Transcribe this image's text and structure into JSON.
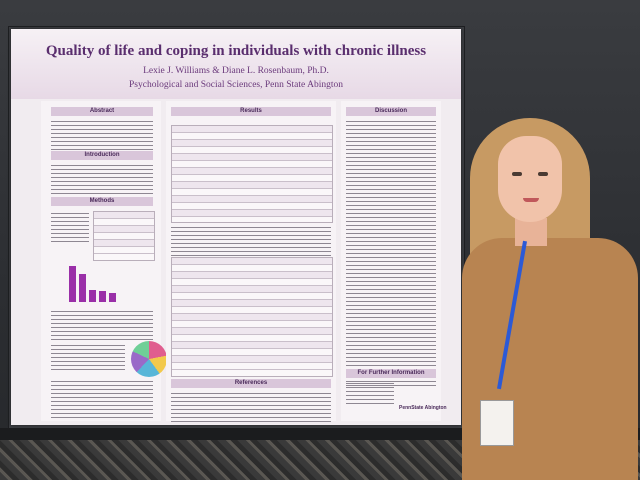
{
  "poster": {
    "title": "Quality of life and coping in individuals with chronic illness",
    "authors": "Lexie J. Williams & Diane L. Rosenbaum, Ph.D.",
    "affiliation": "Psychological and Social Sciences, Penn State Abington",
    "sections": {
      "abstract": "Abstract",
      "introduction": "Introduction",
      "methods": "Methods",
      "results": "Results",
      "discussion": "Discussion",
      "references": "References",
      "further_info": "For Further Information"
    },
    "logo_text": "PennState Abington"
  },
  "colors": {
    "title": "#5a2e6e",
    "header_band": "#d9c6da",
    "bar_fill": "#9a2fa8"
  }
}
